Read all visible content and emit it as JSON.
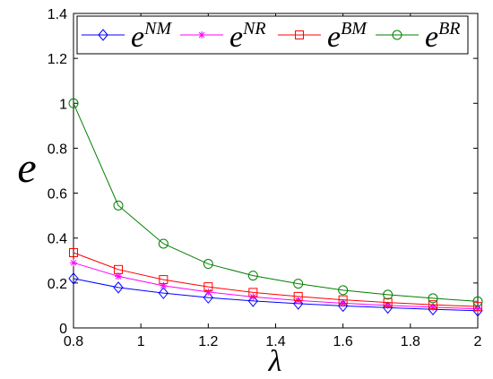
{
  "chart_data": {
    "type": "line",
    "xlabel": "λ",
    "ylabel": "e",
    "xlim": [
      0.8,
      2.0
    ],
    "ylim": [
      0,
      1.4
    ],
    "x_ticks": [
      "0.8",
      "1",
      "1.2",
      "1.4",
      "1.6",
      "1.8",
      "2"
    ],
    "y_ticks": [
      "0",
      "0.2",
      "0.4",
      "0.6",
      "0.8",
      "1",
      "1.2",
      "1.4"
    ],
    "grid": false,
    "legend_position": "top",
    "x": [
      0.8,
      0.933,
      1.067,
      1.2,
      1.333,
      1.467,
      1.6,
      1.733,
      1.867,
      2.0
    ],
    "series": [
      {
        "name_base": "e",
        "name_sup": "NM",
        "color": "#0000ff",
        "marker": "diamond",
        "values": [
          0.22,
          0.18,
          0.155,
          0.135,
          0.12,
          0.108,
          0.098,
          0.09,
          0.083,
          0.077
        ]
      },
      {
        "name_base": "e",
        "name_sup": "NR",
        "color": "#ff00ff",
        "marker": "star",
        "values": [
          0.29,
          0.23,
          0.188,
          0.16,
          0.138,
          0.122,
          0.11,
          0.1,
          0.092,
          0.085
        ]
      },
      {
        "name_base": "e",
        "name_sup": "BM",
        "color": "#ff0000",
        "marker": "square",
        "values": [
          0.335,
          0.26,
          0.215,
          0.183,
          0.158,
          0.14,
          0.125,
          0.113,
          0.103,
          0.095
        ]
      },
      {
        "name_base": "e",
        "name_sup": "BR",
        "color": "#008000",
        "marker": "circle",
        "values": [
          1.0,
          0.545,
          0.375,
          0.285,
          0.233,
          0.197,
          0.168,
          0.148,
          0.132,
          0.118
        ]
      }
    ]
  }
}
